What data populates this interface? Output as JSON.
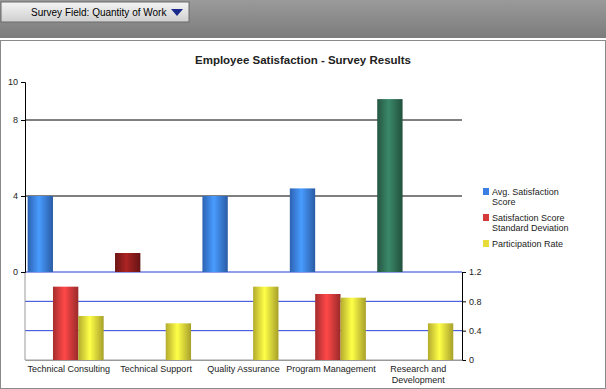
{
  "toolbar": {
    "dropdown_label": "Survey Field: Quantity of Work"
  },
  "chart_data": {
    "type": "bar",
    "title": "Employee Satisfaction - Survey Results",
    "categories": [
      "Technical Consulting",
      "Technical Support",
      "Quality Assurance",
      "Program Management",
      "Research and Development"
    ],
    "series": [
      {
        "name": "Avg. Satisfaction Score",
        "color": "#3a7ee4",
        "colors": [
          "#3a7ee4",
          "#8b1c1c",
          "#3a7ee4",
          "#3a7ee4",
          "#2f6e55"
        ],
        "values": [
          4,
          1,
          4,
          4.4,
          9.1
        ]
      },
      {
        "name": "Satisfaction Score Standard Deviation",
        "color": "#d43a3a",
        "axis": "y2",
        "values": [
          1.0,
          null,
          null,
          0.9,
          null
        ]
      },
      {
        "name": "Participation Rate",
        "color": "#e6dc3a",
        "axis": "y2",
        "values": [
          0.6,
          0.5,
          1.0,
          0.85,
          0.5
        ]
      }
    ],
    "ylim": [
      0,
      10
    ],
    "yticks": [
      0,
      4,
      8,
      10
    ],
    "y2lim": [
      0,
      1.2
    ],
    "y2ticks": [
      0,
      0.4,
      0.8,
      1.2
    ],
    "grid": true,
    "legend": "right"
  }
}
